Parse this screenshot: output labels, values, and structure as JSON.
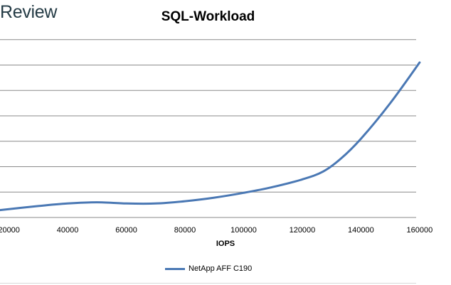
{
  "brand": "Review",
  "chart_data": {
    "type": "line",
    "title": "SQL-Workload",
    "xlabel": "IOPS",
    "ylabel": "",
    "x_ticks": [
      20000,
      40000,
      60000,
      80000,
      100000,
      120000,
      140000,
      160000
    ],
    "xlim": [
      15000,
      161000
    ],
    "ylim": [
      0,
      8
    ],
    "grid": true,
    "legend_position": "bottom",
    "series": [
      {
        "name": "NetApp AFF C190",
        "color": "#4a78b4",
        "x": [
          16000,
          30000,
          40000,
          50000,
          60000,
          70000,
          80000,
          90000,
          100000,
          110000,
          120000,
          127000,
          133000,
          140000,
          150000,
          160000
        ],
        "y": [
          0.28,
          0.45,
          0.55,
          0.6,
          0.55,
          0.55,
          0.64,
          0.78,
          0.97,
          1.2,
          1.5,
          1.8,
          2.3,
          3.1,
          4.5,
          6.1
        ]
      }
    ]
  }
}
